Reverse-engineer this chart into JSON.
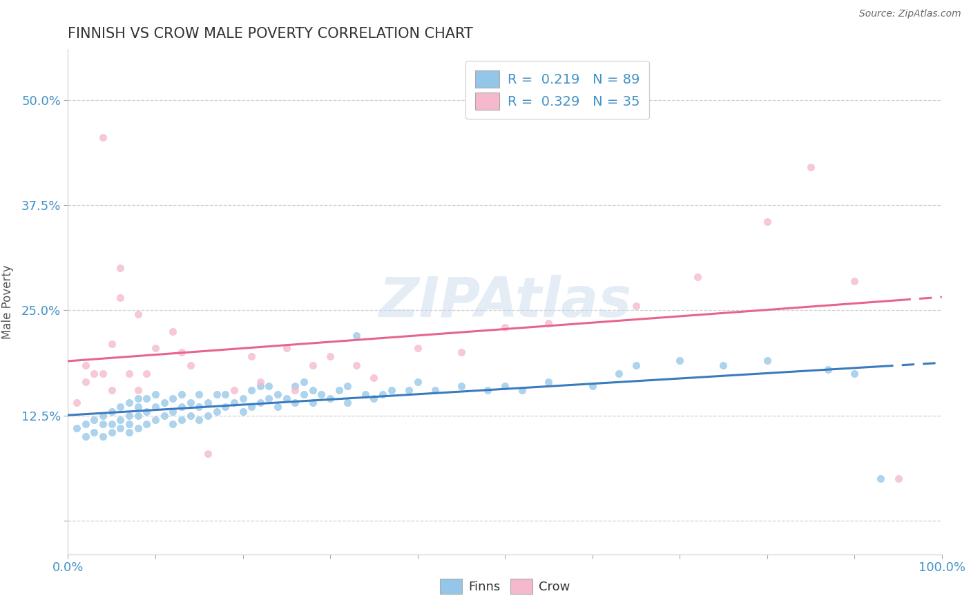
{
  "title": "FINNISH VS CROW MALE POVERTY CORRELATION CHART",
  "source": "Source: ZipAtlas.com",
  "ylabel": "Male Poverty",
  "xlabel": "",
  "xlim": [
    0.0,
    1.0
  ],
  "ylim": [
    -0.04,
    0.56
  ],
  "yticks": [
    0.0,
    0.125,
    0.25,
    0.375,
    0.5
  ],
  "ytick_labels": [
    "",
    "12.5%",
    "25.0%",
    "37.5%",
    "50.0%"
  ],
  "background_color": "#ffffff",
  "grid_color": "#d0d0d0",
  "finns_color": "#93c6e8",
  "crow_color": "#f5b8cc",
  "finns_line_color": "#3a7abf",
  "crow_line_color": "#e8648a",
  "finns_scatter": [
    [
      0.01,
      0.11
    ],
    [
      0.02,
      0.1
    ],
    [
      0.02,
      0.115
    ],
    [
      0.03,
      0.105
    ],
    [
      0.03,
      0.12
    ],
    [
      0.04,
      0.1
    ],
    [
      0.04,
      0.115
    ],
    [
      0.04,
      0.125
    ],
    [
      0.05,
      0.105
    ],
    [
      0.05,
      0.115
    ],
    [
      0.05,
      0.13
    ],
    [
      0.06,
      0.11
    ],
    [
      0.06,
      0.12
    ],
    [
      0.06,
      0.135
    ],
    [
      0.07,
      0.105
    ],
    [
      0.07,
      0.115
    ],
    [
      0.07,
      0.125
    ],
    [
      0.07,
      0.14
    ],
    [
      0.08,
      0.11
    ],
    [
      0.08,
      0.125
    ],
    [
      0.08,
      0.135
    ],
    [
      0.08,
      0.145
    ],
    [
      0.09,
      0.115
    ],
    [
      0.09,
      0.13
    ],
    [
      0.09,
      0.145
    ],
    [
      0.1,
      0.12
    ],
    [
      0.1,
      0.135
    ],
    [
      0.1,
      0.15
    ],
    [
      0.11,
      0.125
    ],
    [
      0.11,
      0.14
    ],
    [
      0.12,
      0.115
    ],
    [
      0.12,
      0.13
    ],
    [
      0.12,
      0.145
    ],
    [
      0.13,
      0.12
    ],
    [
      0.13,
      0.135
    ],
    [
      0.13,
      0.15
    ],
    [
      0.14,
      0.125
    ],
    [
      0.14,
      0.14
    ],
    [
      0.15,
      0.12
    ],
    [
      0.15,
      0.135
    ],
    [
      0.15,
      0.15
    ],
    [
      0.16,
      0.125
    ],
    [
      0.16,
      0.14
    ],
    [
      0.17,
      0.13
    ],
    [
      0.17,
      0.15
    ],
    [
      0.18,
      0.135
    ],
    [
      0.18,
      0.15
    ],
    [
      0.19,
      0.14
    ],
    [
      0.2,
      0.13
    ],
    [
      0.2,
      0.145
    ],
    [
      0.21,
      0.135
    ],
    [
      0.21,
      0.155
    ],
    [
      0.22,
      0.14
    ],
    [
      0.22,
      0.16
    ],
    [
      0.23,
      0.145
    ],
    [
      0.23,
      0.16
    ],
    [
      0.24,
      0.135
    ],
    [
      0.24,
      0.15
    ],
    [
      0.25,
      0.145
    ],
    [
      0.26,
      0.14
    ],
    [
      0.26,
      0.16
    ],
    [
      0.27,
      0.15
    ],
    [
      0.27,
      0.165
    ],
    [
      0.28,
      0.14
    ],
    [
      0.28,
      0.155
    ],
    [
      0.29,
      0.15
    ],
    [
      0.3,
      0.145
    ],
    [
      0.31,
      0.155
    ],
    [
      0.32,
      0.14
    ],
    [
      0.32,
      0.16
    ],
    [
      0.33,
      0.22
    ],
    [
      0.34,
      0.15
    ],
    [
      0.35,
      0.145
    ],
    [
      0.36,
      0.15
    ],
    [
      0.37,
      0.155
    ],
    [
      0.39,
      0.155
    ],
    [
      0.4,
      0.165
    ],
    [
      0.42,
      0.155
    ],
    [
      0.45,
      0.16
    ],
    [
      0.48,
      0.155
    ],
    [
      0.5,
      0.16
    ],
    [
      0.52,
      0.155
    ],
    [
      0.55,
      0.165
    ],
    [
      0.6,
      0.16
    ],
    [
      0.63,
      0.175
    ],
    [
      0.65,
      0.185
    ],
    [
      0.7,
      0.19
    ],
    [
      0.75,
      0.185
    ],
    [
      0.8,
      0.19
    ],
    [
      0.87,
      0.18
    ],
    [
      0.9,
      0.175
    ],
    [
      0.93,
      0.05
    ]
  ],
  "crow_scatter": [
    [
      0.01,
      0.14
    ],
    [
      0.02,
      0.165
    ],
    [
      0.02,
      0.185
    ],
    [
      0.03,
      0.175
    ],
    [
      0.04,
      0.455
    ],
    [
      0.04,
      0.175
    ],
    [
      0.05,
      0.155
    ],
    [
      0.05,
      0.21
    ],
    [
      0.06,
      0.265
    ],
    [
      0.06,
      0.3
    ],
    [
      0.07,
      0.175
    ],
    [
      0.08,
      0.155
    ],
    [
      0.08,
      0.245
    ],
    [
      0.09,
      0.175
    ],
    [
      0.1,
      0.205
    ],
    [
      0.12,
      0.225
    ],
    [
      0.13,
      0.2
    ],
    [
      0.14,
      0.185
    ],
    [
      0.16,
      0.08
    ],
    [
      0.19,
      0.155
    ],
    [
      0.21,
      0.195
    ],
    [
      0.22,
      0.165
    ],
    [
      0.25,
      0.205
    ],
    [
      0.26,
      0.155
    ],
    [
      0.28,
      0.185
    ],
    [
      0.3,
      0.195
    ],
    [
      0.33,
      0.185
    ],
    [
      0.35,
      0.17
    ],
    [
      0.4,
      0.205
    ],
    [
      0.45,
      0.2
    ],
    [
      0.5,
      0.23
    ],
    [
      0.55,
      0.235
    ],
    [
      0.65,
      0.255
    ],
    [
      0.72,
      0.29
    ],
    [
      0.8,
      0.355
    ],
    [
      0.85,
      0.42
    ],
    [
      0.9,
      0.285
    ],
    [
      0.95,
      0.05
    ]
  ]
}
